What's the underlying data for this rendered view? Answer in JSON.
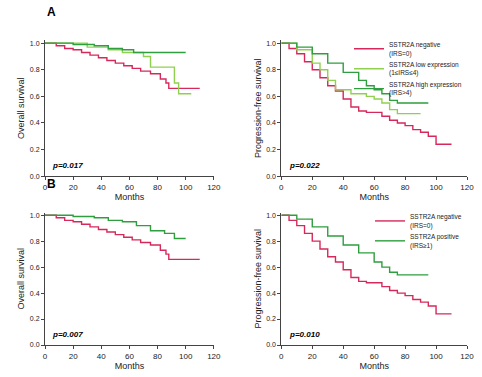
{
  "chart_data": [
    {
      "type": "line",
      "title": "A",
      "line_style": "step",
      "x_label": "Months",
      "y_label": "Overall survival",
      "xlim": [
        0,
        120
      ],
      "xticks": [
        0,
        20,
        40,
        60,
        80,
        100,
        120
      ],
      "ylim": [
        0,
        1.02
      ],
      "yticks": [
        {
          "value": 0,
          "label": "0.0"
        },
        {
          "value": 0.2,
          "label": "0.2"
        },
        {
          "value": 0.4,
          "label": "0.4"
        },
        {
          "value": 0.6,
          "label": "0.6"
        },
        {
          "value": 0.8,
          "label": "0.8"
        },
        {
          "value": 1.0,
          "label": "1.0"
        }
      ],
      "annotations": [
        "p=0.017"
      ],
      "series": [
        {
          "color": "#d6295b",
          "x": [
            0,
            8,
            14,
            20,
            26,
            32,
            38,
            44,
            50,
            56,
            62,
            68,
            75,
            82,
            86,
            88,
            110
          ],
          "values": [
            1,
            0.98,
            0.96,
            0.95,
            0.93,
            0.91,
            0.89,
            0.87,
            0.85,
            0.83,
            0.81,
            0.79,
            0.77,
            0.73,
            0.7,
            0.66,
            0.66
          ]
        },
        {
          "color": "#8fd14f",
          "x": [
            0,
            30,
            45,
            55,
            70,
            75,
            90,
            92,
            95,
            104
          ],
          "values": [
            1,
            0.97,
            0.95,
            0.93,
            0.9,
            0.82,
            0.82,
            0.7,
            0.62,
            0.62
          ]
        },
        {
          "color": "#2e9e3e",
          "x": [
            0,
            20,
            35,
            45,
            55,
            63,
            100
          ],
          "values": [
            1,
            0.99,
            0.98,
            0.96,
            0.95,
            0.93,
            0.93
          ]
        }
      ]
    },
    {
      "type": "line",
      "line_style": "step",
      "legend": "upper right",
      "x_label": "Months",
      "y_label": "Progression-free survival",
      "xlim": [
        0,
        120
      ],
      "xticks": [
        0,
        20,
        40,
        60,
        80,
        100,
        120
      ],
      "ylim": [
        0,
        1.02
      ],
      "yticks": [
        {
          "value": 0,
          "label": "0.0"
        },
        {
          "value": 0.2,
          "label": "0.2"
        },
        {
          "value": 0.4,
          "label": "0.4"
        },
        {
          "value": 0.6,
          "label": "0.6"
        },
        {
          "value": 0.8,
          "label": "0.8"
        },
        {
          "value": 1.0,
          "label": "1.0"
        }
      ],
      "annotations": [
        "p=0.022"
      ],
      "series": [
        {
          "name": "SSTR2A negative\n(IRS=0)",
          "color": "#d6295b",
          "x": [
            0,
            5,
            10,
            15,
            20,
            25,
            30,
            35,
            40,
            45,
            50,
            55,
            60,
            65,
            70,
            75,
            80,
            85,
            90,
            95,
            100,
            110
          ],
          "values": [
            1,
            0.96,
            0.92,
            0.86,
            0.8,
            0.74,
            0.68,
            0.64,
            0.58,
            0.52,
            0.49,
            0.48,
            0.48,
            0.45,
            0.42,
            0.4,
            0.38,
            0.35,
            0.33,
            0.3,
            0.24,
            0.24
          ]
        },
        {
          "name": "SSTR2A low expression\n(1≤IRS≤4)",
          "color": "#8fd14f",
          "x": [
            0,
            10,
            20,
            25,
            30,
            35,
            45,
            55,
            60,
            65,
            70,
            75,
            90
          ],
          "values": [
            1,
            0.95,
            0.85,
            0.8,
            0.72,
            0.65,
            0.62,
            0.6,
            0.58,
            0.55,
            0.5,
            0.47,
            0.47
          ]
        },
        {
          "name": "SSTR2A high expression\n(IRS>4)",
          "color": "#2e9e3e",
          "x": [
            0,
            10,
            20,
            30,
            40,
            50,
            55,
            60,
            65,
            70,
            75,
            95
          ],
          "values": [
            1,
            0.97,
            0.92,
            0.85,
            0.78,
            0.72,
            0.68,
            0.65,
            0.62,
            0.57,
            0.55,
            0.55
          ]
        }
      ]
    },
    {
      "type": "line",
      "title": "B",
      "line_style": "step",
      "x_label": "Months",
      "y_label": "Overall survival",
      "xlim": [
        0,
        120
      ],
      "xticks": [
        0,
        20,
        40,
        60,
        80,
        100,
        120
      ],
      "ylim": [
        0,
        1.02
      ],
      "yticks": [
        {
          "value": 0,
          "label": "0.0"
        },
        {
          "value": 0.2,
          "label": "0.2"
        },
        {
          "value": 0.4,
          "label": "0.4"
        },
        {
          "value": 0.6,
          "label": "0.6"
        },
        {
          "value": 0.8,
          "label": "0.8"
        },
        {
          "value": 1.0,
          "label": "1.0"
        }
      ],
      "annotations": [
        "p=0.007"
      ],
      "series": [
        {
          "color": "#d6295b",
          "x": [
            0,
            8,
            14,
            20,
            26,
            32,
            38,
            44,
            50,
            56,
            62,
            68,
            75,
            82,
            86,
            88,
            110
          ],
          "values": [
            1,
            0.98,
            0.96,
            0.95,
            0.93,
            0.91,
            0.89,
            0.87,
            0.85,
            0.83,
            0.81,
            0.79,
            0.77,
            0.73,
            0.7,
            0.66,
            0.66
          ]
        },
        {
          "color": "#2e9e3e",
          "x": [
            0,
            20,
            35,
            45,
            55,
            65,
            75,
            85,
            92,
            100
          ],
          "values": [
            1,
            0.99,
            0.98,
            0.96,
            0.95,
            0.92,
            0.88,
            0.86,
            0.82,
            0.82
          ]
        }
      ]
    },
    {
      "type": "line",
      "line_style": "step",
      "legend": "upper right",
      "x_label": "Months",
      "y_label": "Progression-free survival",
      "xlim": [
        0,
        120
      ],
      "xticks": [
        0,
        20,
        40,
        60,
        80,
        100,
        120
      ],
      "ylim": [
        0,
        1.02
      ],
      "yticks": [
        {
          "value": 0,
          "label": "0.0"
        },
        {
          "value": 0.2,
          "label": "0.2"
        },
        {
          "value": 0.4,
          "label": "0.4"
        },
        {
          "value": 0.6,
          "label": "0.6"
        },
        {
          "value": 0.8,
          "label": "0.8"
        },
        {
          "value": 1.0,
          "label": "1.0"
        }
      ],
      "annotations": [
        "p=0.010"
      ],
      "series": [
        {
          "name": "SSTR2A negative\n(IRS=0)",
          "color": "#d6295b",
          "x": [
            0,
            5,
            10,
            15,
            20,
            25,
            30,
            35,
            40,
            45,
            50,
            55,
            60,
            65,
            70,
            75,
            80,
            85,
            90,
            95,
            100,
            110
          ],
          "values": [
            1,
            0.96,
            0.92,
            0.86,
            0.8,
            0.74,
            0.68,
            0.64,
            0.58,
            0.52,
            0.49,
            0.48,
            0.48,
            0.45,
            0.42,
            0.4,
            0.38,
            0.35,
            0.33,
            0.3,
            0.24,
            0.24
          ]
        },
        {
          "name": "SSTR2A positive\n(IRS≥1)",
          "color": "#2e9e3e",
          "x": [
            0,
            10,
            20,
            30,
            40,
            50,
            60,
            65,
            70,
            75,
            95
          ],
          "values": [
            1,
            0.97,
            0.91,
            0.84,
            0.77,
            0.71,
            0.64,
            0.6,
            0.56,
            0.54,
            0.54
          ]
        }
      ]
    }
  ]
}
